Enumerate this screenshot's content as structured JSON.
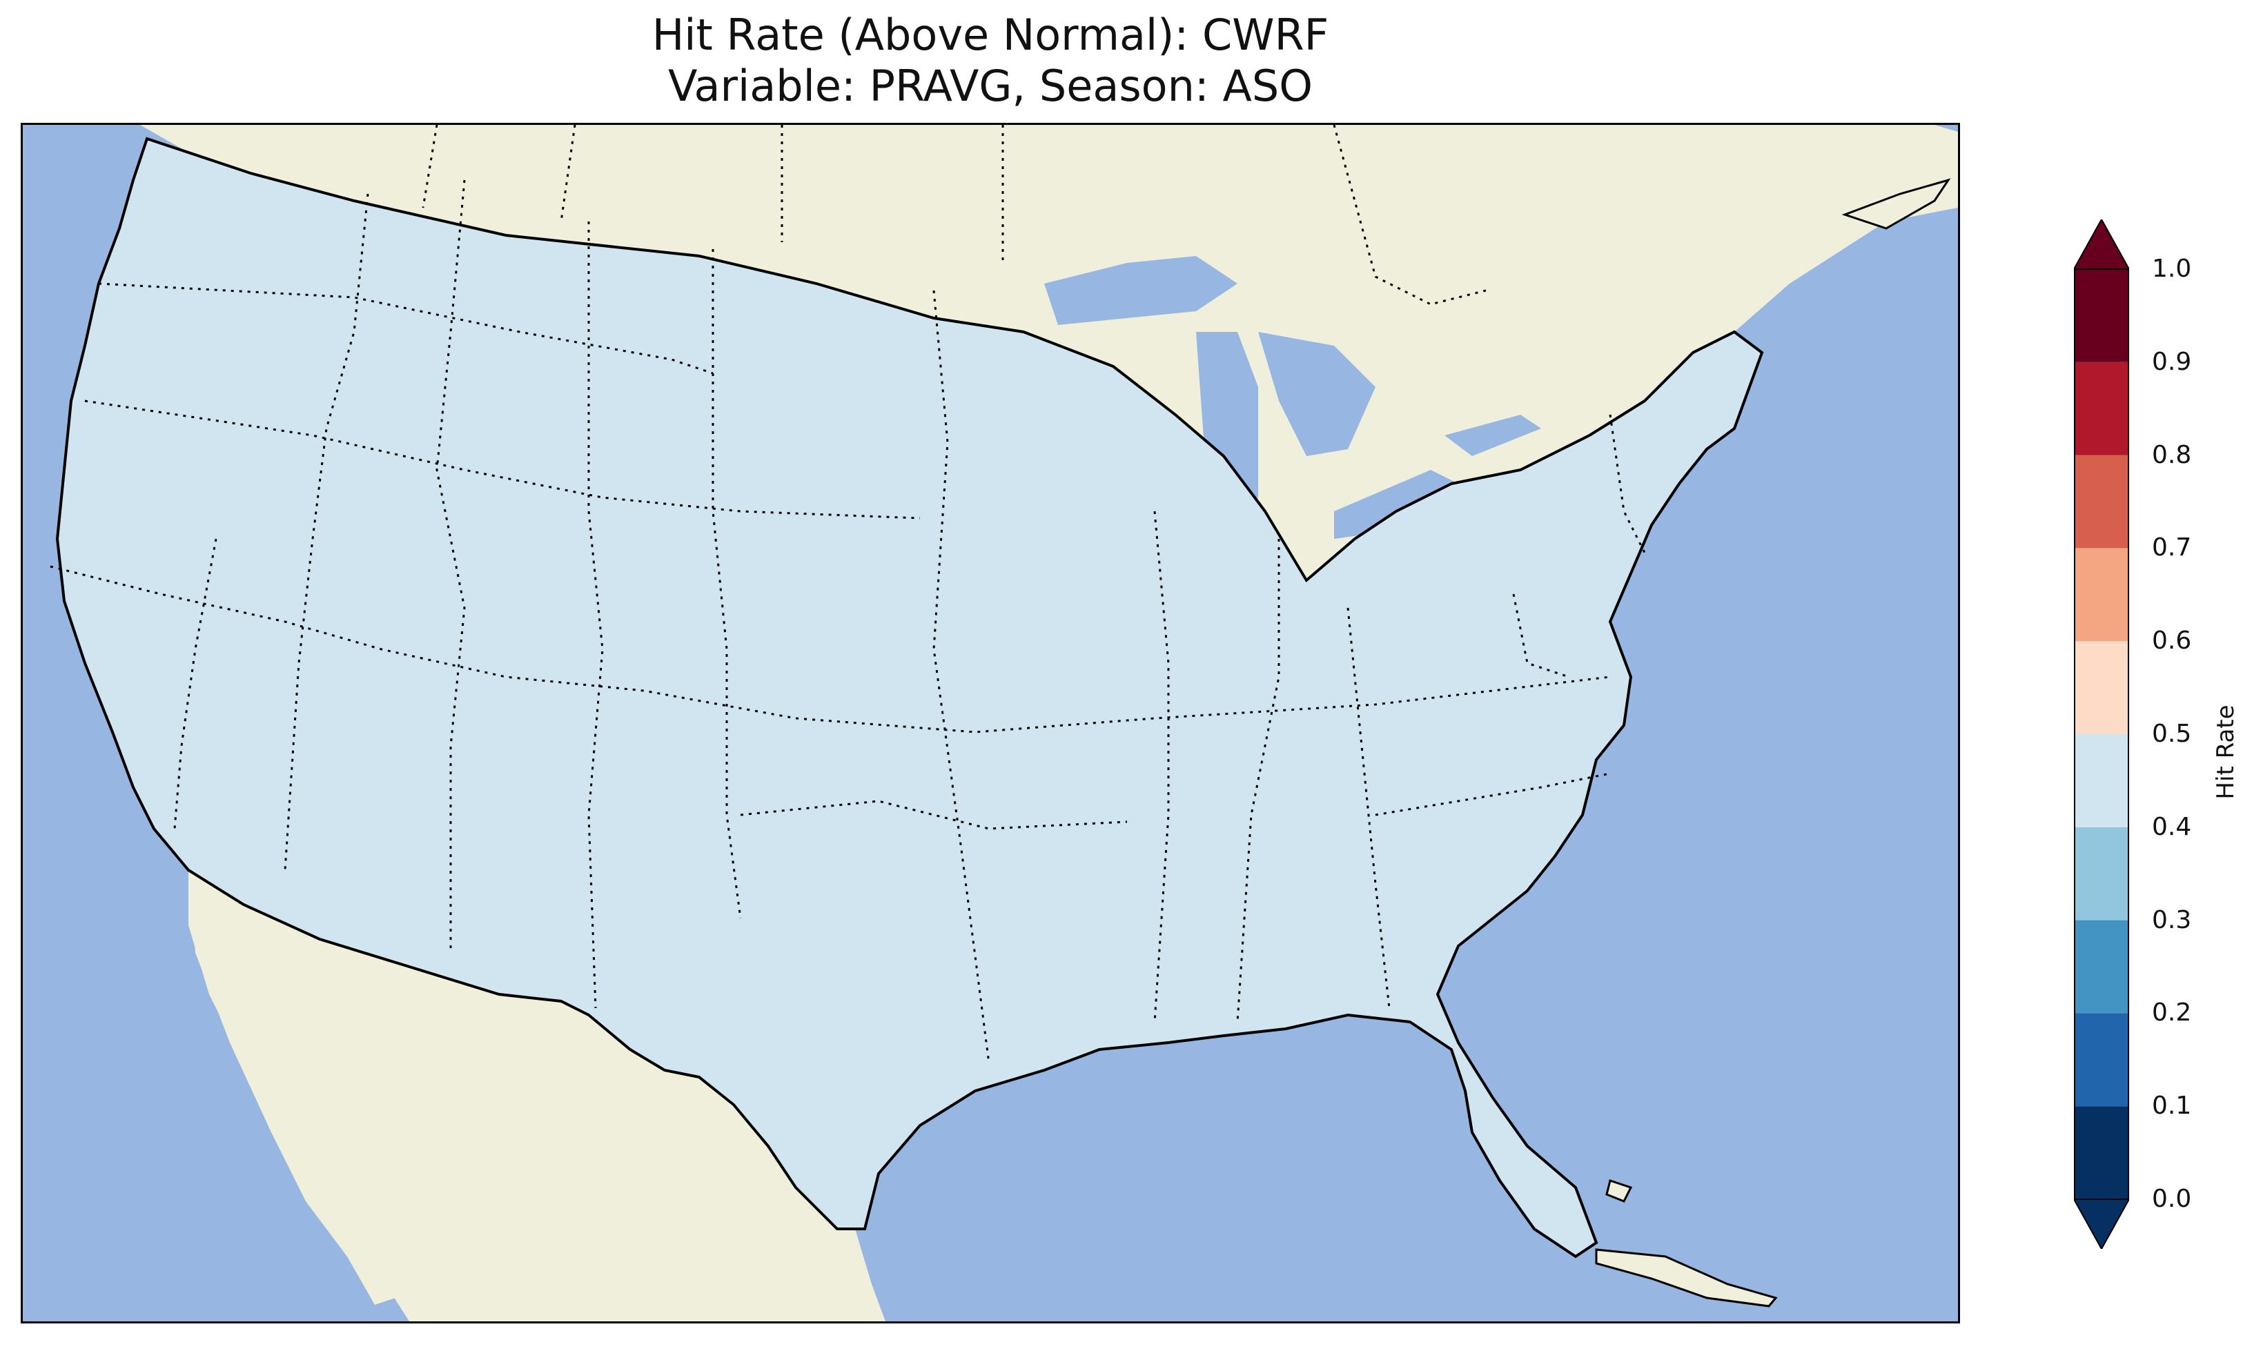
{
  "title": {
    "line1": "Hit Rate (Above Normal): CWRF",
    "line2": "Variable: PRAVG, Season: ASO"
  },
  "colors": {
    "ocean": "#97b6e1",
    "land": "#efefdb",
    "lakes": "#97b6e1",
    "coast": "#000000",
    "border": "#000000"
  },
  "colorbar": {
    "label": "Hit Rate",
    "ticks": [
      "0.0",
      "0.1",
      "0.2",
      "0.3",
      "0.4",
      "0.5",
      "0.6",
      "0.7",
      "0.8",
      "0.9",
      "1.0"
    ],
    "bins": [
      {
        "from": 0.0,
        "to": 0.1,
        "color": "#053061"
      },
      {
        "from": 0.1,
        "to": 0.2,
        "color": "#2166ac"
      },
      {
        "from": 0.2,
        "to": 0.3,
        "color": "#4393c3"
      },
      {
        "from": 0.3,
        "to": 0.4,
        "color": "#92c5de"
      },
      {
        "from": 0.4,
        "to": 0.5,
        "color": "#d1e5f0"
      },
      {
        "from": 0.5,
        "to": 0.6,
        "color": "#fddbc7"
      },
      {
        "from": 0.6,
        "to": 0.7,
        "color": "#f4a582"
      },
      {
        "from": 0.7,
        "to": 0.8,
        "color": "#d6604d"
      },
      {
        "from": 0.8,
        "to": 0.9,
        "color": "#b2182b"
      },
      {
        "from": 0.9,
        "to": 1.0,
        "color": "#67001f"
      }
    ],
    "extend": "both"
  }
}
